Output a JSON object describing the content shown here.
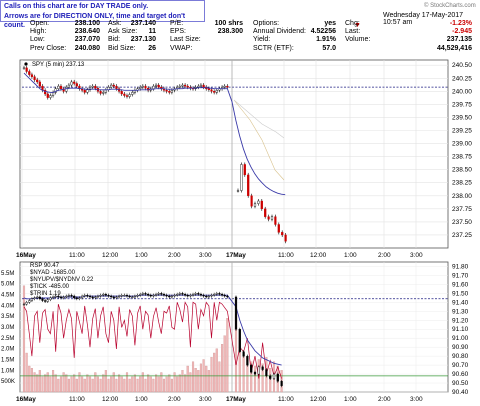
{
  "note": {
    "line1": "Calls on this chart are for DAY TRADE only.",
    "line2": "Arrows are for DIRECTION ONLY, time and target don't count."
  },
  "credit": "© StockCharts.com",
  "header": {
    "date": "Wednesday  17-May-2017  10:57 am",
    "col1": [
      {
        "label": "Open:",
        "value": "238.100"
      },
      {
        "label": "High:",
        "value": "238.640"
      },
      {
        "label": "Low:",
        "value": "237.070"
      },
      {
        "label": "Prev Close:",
        "value": "240.080"
      }
    ],
    "col2": [
      {
        "label": "Ask:",
        "value": "237.140"
      },
      {
        "label": "Ask Size:",
        "value": "11"
      },
      {
        "label": "Bid:",
        "value": "237.130"
      },
      {
        "label": "Bid Size:",
        "value": "26"
      }
    ],
    "col3": [
      {
        "label": "P/E:",
        "value": ""
      },
      {
        "label": "EPS:",
        "value": ""
      },
      {
        "label": "Last Size:",
        "value": "100 shrs"
      },
      {
        "label": "VWAP:",
        "value": "238.300"
      }
    ],
    "col4": [
      {
        "label": "Options:",
        "value": "yes"
      },
      {
        "label": "Annual Dividend:",
        "value": "4.52256"
      },
      {
        "label": "Yield:",
        "value": "1.91%"
      },
      {
        "label": "SCTR (ETF):",
        "value": "57.0"
      }
    ],
    "col5": [
      {
        "label": "",
        "value": "-1.23%"
      },
      {
        "label": "Chg:",
        "value": "-2.945"
      },
      {
        "label": "Last:",
        "value": "237.135"
      },
      {
        "label": "Volume:",
        "value": "44,529,416"
      }
    ]
  },
  "chart_data": [
    {
      "type": "line",
      "title": "SPY (5 min) 237.13",
      "x_ticks": [
        "16May",
        "11:00",
        "12:00",
        "1:00",
        "2:00",
        "3:00",
        "17May",
        "11:00",
        "12:00",
        "1:00",
        "2:00",
        "3:00"
      ],
      "ylim": [
        237.0,
        240.6
      ],
      "y_ticks": [
        "237.25",
        "237.50",
        "237.75",
        "238.00",
        "238.25",
        "238.50",
        "238.75",
        "239.00",
        "239.25",
        "239.50",
        "239.75",
        "240.00",
        "240.25",
        "240.50"
      ],
      "reference_line": 240.08,
      "series": [
        {
          "name": "SPY",
          "color": "#000000",
          "values": [
            240.45,
            240.38,
            240.32,
            240.28,
            240.22,
            240.18,
            240.1,
            240.02,
            239.95,
            239.88,
            239.92,
            239.98,
            240.05,
            240.1,
            240.05,
            240.0,
            240.08,
            240.12,
            240.18,
            240.15,
            240.1,
            240.05,
            240.02,
            239.98,
            240.03,
            240.08,
            240.1,
            240.06,
            240.0,
            239.96,
            239.98,
            240.03,
            240.08,
            240.12,
            240.1,
            240.05,
            240.0,
            239.95,
            239.92,
            239.9,
            239.94,
            239.98,
            240.02,
            240.05,
            240.08,
            240.1,
            240.06,
            240.02,
            240.05,
            240.1,
            240.12,
            240.08,
            240.05,
            240.02,
            240.0,
            239.98,
            240.02,
            240.05,
            240.08,
            240.1,
            240.12,
            240.1,
            240.08,
            240.06,
            240.05,
            240.08,
            240.1,
            240.12,
            240.08,
            240.05,
            240.03,
            240.0,
            239.98,
            240.02,
            240.05,
            240.08,
            240.1,
            240.08
          ]
        },
        {
          "name": "SPY-17May",
          "color": "#000000",
          "values": [
            238.1,
            238.6,
            238.4,
            238.0,
            237.8,
            237.85,
            237.9,
            237.75,
            237.6,
            237.55,
            237.6,
            237.45,
            237.3,
            237.25,
            237.13
          ]
        },
        {
          "name": "MA-1",
          "color": "#3a3aa8",
          "values": [
            240.35,
            240.3,
            240.25,
            240.2,
            240.15,
            240.1,
            240.05,
            240.02,
            240.0,
            239.99,
            239.98,
            239.98,
            240.0,
            240.02,
            240.03,
            240.04,
            240.05,
            240.06,
            240.06,
            240.06,
            240.06,
            240.05,
            240.05,
            240.04,
            240.04,
            240.04,
            240.04,
            240.04,
            240.03,
            240.03,
            240.03,
            240.03,
            240.03,
            240.04,
            240.04,
            240.04,
            240.03,
            240.03,
            240.02,
            240.02,
            240.02,
            240.02,
            240.02,
            240.02,
            240.03,
            240.03,
            240.03,
            240.03,
            240.04,
            240.04,
            240.05,
            240.05,
            240.05,
            240.05,
            240.04,
            240.04,
            240.04,
            240.04,
            240.05,
            240.05,
            240.05,
            240.06,
            240.06,
            240.06,
            240.06,
            240.06,
            240.07,
            240.07,
            240.07,
            240.07,
            240.06,
            240.06,
            240.05,
            240.05,
            240.05,
            240.05,
            240.05,
            240.05,
            239.8,
            239.45,
            239.15,
            238.9,
            238.7,
            238.55,
            238.42,
            238.32,
            238.24,
            238.17,
            238.12,
            238.08,
            238.05,
            238.03,
            238.02
          ]
        }
      ]
    },
    {
      "type": "line",
      "title": "RSP 90.47",
      "series_labels": [
        "RSP 90.47",
        "$NYAD -1685.00",
        "$NYUPV/$NYDNV 0.22",
        "$TICK -485.00",
        "$TRIN 1.19"
      ],
      "left_ticks": [
        "5.5M",
        "5.0M",
        "4.5M",
        "4.0M",
        "3.5M",
        "3.0M",
        "2.5M",
        "2.0M",
        "1.5M",
        "1.0M",
        "500K"
      ],
      "y_ticks": [
        "91.80",
        "91.70",
        "91.60",
        "91.50",
        "91.40",
        "91.30",
        "91.20",
        "91.10",
        "91.00",
        "90.90",
        "90.80",
        "90.70",
        "90.60",
        "90.50",
        "90.40"
      ],
      "ylim": [
        90.4,
        91.85
      ],
      "reference_line": 91.44,
      "series": [
        {
          "name": "RSP",
          "color": "#000000",
          "values": [
            91.38,
            91.4,
            91.42,
            91.44,
            91.45,
            91.46,
            91.44,
            91.42,
            91.41,
            91.43,
            91.45,
            91.46,
            91.47,
            91.46,
            91.45,
            91.46,
            91.47,
            91.48,
            91.47,
            91.45,
            91.44,
            91.45,
            91.47,
            91.48,
            91.47,
            91.46,
            91.45,
            91.46,
            91.47,
            91.48,
            91.49,
            91.48,
            91.47,
            91.46,
            91.45,
            91.46,
            91.47,
            91.48,
            91.48,
            91.47,
            91.46,
            91.46,
            91.47,
            91.48,
            91.49,
            91.5,
            91.49,
            91.48,
            91.47,
            91.48,
            91.49,
            91.5,
            91.49,
            91.48,
            91.47,
            91.46,
            91.47,
            91.48,
            91.49,
            91.5,
            91.49,
            91.48,
            91.47,
            91.48,
            91.49,
            91.5,
            91.49,
            91.48,
            91.47,
            91.46,
            91.47,
            91.48,
            91.49,
            91.5,
            91.49,
            91.48,
            91.47,
            91.46,
            91.1,
            90.85,
            90.8,
            90.7,
            90.62,
            90.6,
            90.68,
            90.65,
            90.58,
            90.55,
            90.6,
            90.52,
            90.47
          ]
        },
        {
          "name": "TRIN",
          "color": "#b8002c",
          "values": [
            91.35,
            91.3,
            91.05,
            90.8,
            91.25,
            91.3,
            90.95,
            91.28,
            91.32,
            91.1,
            91.05,
            91.3,
            90.85,
            91.38,
            91.28,
            91.0,
            91.2,
            91.32,
            91.22,
            90.78,
            91.3,
            91.18,
            91.05,
            91.36,
            91.15,
            90.9,
            91.22,
            91.33,
            91.0,
            91.25,
            91.35,
            91.05,
            90.95,
            91.3,
            91.2,
            90.88,
            91.35,
            91.12,
            91.2,
            91.02,
            91.32,
            91.25,
            90.92,
            91.28,
            91.36,
            91.1,
            91.3,
            91.26,
            91.0,
            91.24,
            91.34,
            91.18,
            91.05,
            91.3,
            91.28,
            91.36,
            91.12,
            91.1,
            91.4,
            91.32,
            91.18,
            91.4,
            91.35,
            90.9,
            91.4,
            91.38,
            91.1,
            91.32,
            91.25,
            91.4,
            91.36,
            91.0,
            91.4,
            91.2,
            91.4,
            91.38,
            91.34,
            91.3,
            90.7,
            90.9,
            90.85,
            91.0,
            90.62,
            90.8,
            90.55,
            90.95,
            90.6,
            90.75,
            90.58,
            90.68,
            90.55
          ]
        },
        {
          "name": "MA-RSP",
          "color": "#3a3aa8",
          "values": [
            91.45,
            91.44,
            91.44,
            91.44,
            91.45,
            91.45,
            91.45,
            91.45,
            91.45,
            91.45,
            91.45,
            91.45,
            91.46,
            91.46,
            91.46,
            91.46,
            91.46,
            91.46,
            91.46,
            91.46,
            91.46,
            91.46,
            91.46,
            91.47,
            91.47,
            91.47,
            91.47,
            91.47,
            91.47,
            91.47,
            91.47,
            91.47,
            91.47,
            91.47,
            91.47,
            91.47,
            91.47,
            91.47,
            91.47,
            91.47,
            91.47,
            91.47,
            91.47,
            91.47,
            91.48,
            91.48,
            91.48,
            91.48,
            91.48,
            91.48,
            91.48,
            91.48,
            91.48,
            91.48,
            91.48,
            91.48,
            91.48,
            91.48,
            91.48,
            91.48,
            91.48,
            91.48,
            91.48,
            91.48,
            91.48,
            91.48,
            91.48,
            91.48,
            91.48,
            91.48,
            91.48,
            91.48,
            91.48,
            91.48,
            91.48,
            91.48,
            91.48,
            91.48,
            91.35,
            91.2,
            91.08,
            90.98,
            90.92,
            90.86,
            90.82,
            90.78,
            90.76,
            90.74,
            90.72,
            90.71,
            90.7
          ]
        }
      ],
      "volume": [
        4.9,
        1.8,
        1.2,
        1.1,
        0.9,
        0.8,
        1.0,
        0.7,
        0.8,
        0.9,
        0.7,
        1.0,
        0.8,
        0.6,
        0.7,
        0.9,
        0.8,
        0.6,
        0.7,
        0.8,
        0.6,
        0.9,
        0.7,
        0.6,
        0.8,
        0.7,
        0.6,
        0.9,
        0.7,
        0.6,
        0.8,
        1.0,
        0.6,
        0.7,
        0.9,
        0.6,
        0.8,
        0.7,
        0.6,
        0.9,
        0.6,
        0.7,
        0.8,
        0.6,
        0.7,
        0.9,
        0.6,
        0.8,
        0.7,
        0.6,
        0.8,
        0.7,
        0.9,
        0.6,
        0.7,
        0.8,
        0.6,
        0.9,
        0.7,
        0.8,
        1.0,
        0.8,
        1.2,
        0.9,
        1.4,
        1.1,
        1.0,
        1.3,
        1.5,
        1.2,
        1.0,
        1.6,
        1.8,
        2.0,
        1.4,
        2.2,
        2.6,
        3.4,
        3.6,
        2.4,
        1.8,
        1.6,
        1.4,
        1.2,
        1.5,
        1.3,
        1.6,
        1.1,
        1.4,
        1.2,
        1.0
      ]
    }
  ]
}
